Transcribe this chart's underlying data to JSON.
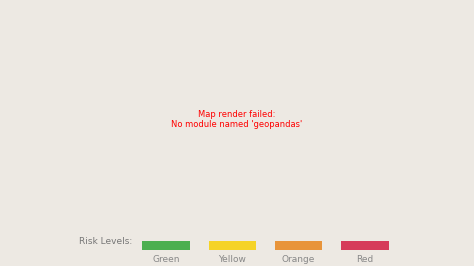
{
  "background_color": "#ede9e3",
  "legend_label": "Risk Levels:",
  "legend_items": [
    {
      "label": "Green",
      "color": "#4caf50"
    },
    {
      "label": "Yellow",
      "color": "#f5d327"
    },
    {
      "label": "Orange",
      "color": "#e8943a"
    },
    {
      "label": "Red",
      "color": "#d63b5a"
    }
  ],
  "legend_fontsize": 6.5,
  "legend_label_fontsize": 6.5,
  "fig_width": 4.74,
  "fig_height": 2.66,
  "dpi": 100,
  "map_colors": {
    "green": "#4caf50",
    "yellow": "#f5d327",
    "orange": "#e8943a",
    "red": "#d63b5a",
    "outside": "#ede9e3"
  }
}
